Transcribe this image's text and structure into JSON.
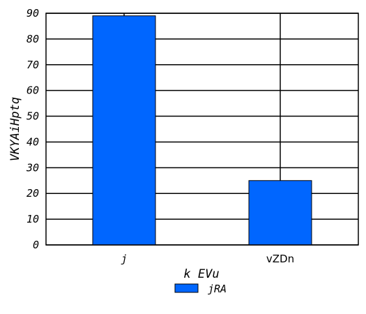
{
  "chart_data": {
    "type": "bar",
    "categories": [
      "j",
      "vZDn"
    ],
    "category_italic": [
      true,
      false
    ],
    "series": [
      {
        "name": "jRA",
        "values": [
          89,
          25
        ],
        "color": "#0066ff"
      }
    ],
    "xlabel": "k EVu",
    "ylabel": "VKYAiHptq",
    "ylim": [
      0,
      90
    ],
    "yticks": [
      0,
      10,
      20,
      30,
      40,
      50,
      60,
      70,
      80,
      90
    ],
    "grid": true,
    "legend_position": "bottom-center"
  }
}
